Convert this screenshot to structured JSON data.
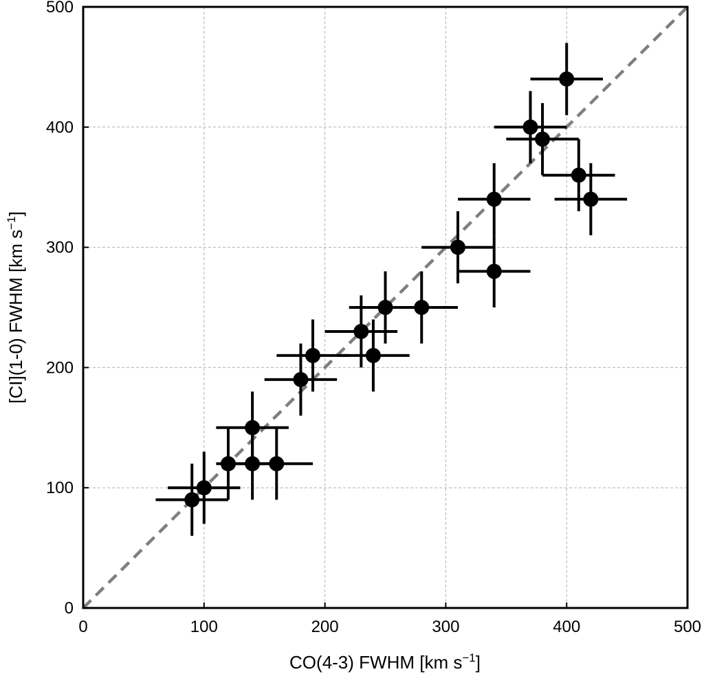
{
  "chart_data": {
    "type": "scatter",
    "title": "",
    "xlabel": "CO(4-3) FWHM [km s",
    "ylabel": "[CI](1-0) FWHM [km s",
    "label_unit_exponent": "−1",
    "label_unit_close": "]",
    "xlim": [
      0,
      500
    ],
    "ylim": [
      0,
      500
    ],
    "x_ticks": [
      0,
      100,
      200,
      300,
      400,
      500
    ],
    "y_ticks": [
      0,
      100,
      200,
      300,
      400,
      500
    ],
    "grid": true,
    "reference_line": "y = x",
    "colors": {
      "points": "#000000",
      "reference_line": "#7f7f7f",
      "grid": "#b0b0b0"
    },
    "points": [
      {
        "x": 90,
        "y": 90,
        "xerr": 30,
        "yerr": 30
      },
      {
        "x": 100,
        "y": 100,
        "xerr": 30,
        "yerr": 30
      },
      {
        "x": 120,
        "y": 120,
        "xerr": 10,
        "yerr": 30
      },
      {
        "x": 140,
        "y": 120,
        "xerr": 20,
        "yerr": 30
      },
      {
        "x": 140,
        "y": 150,
        "xerr": 30,
        "yerr": 30
      },
      {
        "x": 160,
        "y": 120,
        "xerr": 30,
        "yerr": 30
      },
      {
        "x": 180,
        "y": 190,
        "xerr": 30,
        "yerr": 30
      },
      {
        "x": 190,
        "y": 210,
        "xerr": 30,
        "yerr": 30
      },
      {
        "x": 230,
        "y": 230,
        "xerr": 30,
        "yerr": 30
      },
      {
        "x": 240,
        "y": 210,
        "xerr": 30,
        "yerr": 30
      },
      {
        "x": 250,
        "y": 250,
        "xerr": 30,
        "yerr": 30
      },
      {
        "x": 280,
        "y": 250,
        "xerr": 30,
        "yerr": 30
      },
      {
        "x": 310,
        "y": 300,
        "xerr": 30,
        "yerr": 30
      },
      {
        "x": 340,
        "y": 280,
        "xerr": 30,
        "yerr": 30
      },
      {
        "x": 340,
        "y": 340,
        "xerr": 30,
        "yerr": 30
      },
      {
        "x": 370,
        "y": 400,
        "xerr": 30,
        "yerr": 30
      },
      {
        "x": 380,
        "y": 390,
        "xerr": 30,
        "yerr": 30
      },
      {
        "x": 400,
        "y": 440,
        "xerr": 30,
        "yerr": 30
      },
      {
        "x": 410,
        "y": 360,
        "xerr": 30,
        "yerr": 30
      },
      {
        "x": 420,
        "y": 340,
        "xerr": 30,
        "yerr": 30
      }
    ]
  }
}
